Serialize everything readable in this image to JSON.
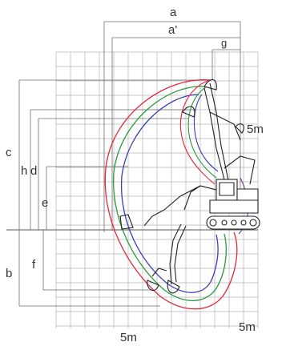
{
  "labels": {
    "a": "a",
    "a_prime": "a'",
    "g": "g",
    "c": "c",
    "h": "h",
    "d": "d",
    "e": "e",
    "b": "b",
    "f": "f",
    "scale_right": "5m",
    "scale_bottom": "5m",
    "scale_bottom_right": "5m"
  },
  "colors": {
    "grid": "#b5b5b5",
    "curve_red": "#e0283a",
    "curve_green": "#2a9a3a",
    "curve_blue": "#3a3fb0",
    "machine": "#222222",
    "dimension": "#6e6e6e"
  }
}
